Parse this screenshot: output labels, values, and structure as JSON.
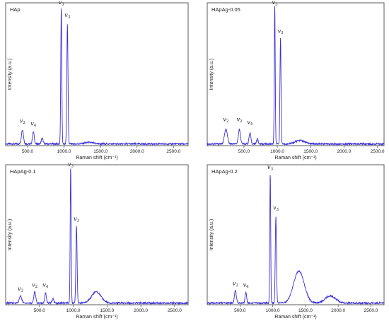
{
  "colors": {
    "series": "#3a2fd6",
    "frame": "#333333"
  },
  "chart_data": [
    {
      "type": "line",
      "panel_label": "HAp",
      "xlabel": "Raman shift (cm⁻¹)",
      "ylabel": "Intensity (a.u.)",
      "xlim": [
        200,
        2700
      ],
      "ylim": [
        0,
        1.0
      ],
      "xticks": [
        "500.0",
        "1000.0",
        "1500.0",
        "2000.0",
        "2500.0"
      ],
      "peaks": [
        {
          "x": 430,
          "y": 0.1,
          "w": 14
        },
        {
          "x": 580,
          "y": 0.085,
          "w": 12
        },
        {
          "x": 700,
          "y": 0.04,
          "w": 12
        },
        {
          "x": 962,
          "y": 0.96,
          "w": 7
        },
        {
          "x": 1046,
          "y": 0.84,
          "w": 8
        },
        {
          "x": 1340,
          "y": 0.01,
          "w": 60
        }
      ],
      "peak_labels": [
        {
          "x": 430,
          "y": 0.16,
          "base": "v",
          "sub": "2"
        },
        {
          "x": 580,
          "y": 0.14,
          "base": "v",
          "sub": "4"
        },
        {
          "x": 962,
          "y": 0.99,
          "base": "v",
          "sub": "3"
        },
        {
          "x": 1046,
          "y": 0.9,
          "base": "v",
          "sub": "3"
        }
      ]
    },
    {
      "type": "line",
      "panel_label": "HApAg-0.05",
      "xlabel": "Raman shift (cm⁻¹)",
      "ylabel": "Intensity (a.u.)",
      "xlim": [
        -50,
        2600
      ],
      "ylim": [
        0,
        1.0
      ],
      "xticks": [
        "500.0",
        "1000.0",
        "1500.0",
        "2000.0",
        "2500.0"
      ],
      "peaks": [
        {
          "x": 230,
          "y": 0.1,
          "w": 22
        },
        {
          "x": 432,
          "y": 0.1,
          "w": 16
        },
        {
          "x": 590,
          "y": 0.075,
          "w": 14
        },
        {
          "x": 700,
          "y": 0.035,
          "w": 12
        },
        {
          "x": 962,
          "y": 0.98,
          "w": 7
        },
        {
          "x": 1048,
          "y": 0.74,
          "w": 8
        },
        {
          "x": 1340,
          "y": 0.025,
          "w": 70
        }
      ],
      "peak_labels": [
        {
          "x": 230,
          "y": 0.17,
          "base": "v",
          "sub": "2"
        },
        {
          "x": 432,
          "y": 0.17,
          "base": "v",
          "sub": "2"
        },
        {
          "x": 590,
          "y": 0.15,
          "base": "v",
          "sub": "4"
        },
        {
          "x": 962,
          "y": 0.99,
          "base": "v",
          "sub": "3"
        },
        {
          "x": 1048,
          "y": 0.79,
          "base": "v",
          "sub": "3"
        }
      ]
    },
    {
      "type": "line",
      "panel_label": "HApAg-0.1",
      "xlabel": "Raman shift (cm⁻¹)",
      "ylabel": "Intensity (a.u.)",
      "xlim": [
        0,
        2700
      ],
      "ylim": [
        0,
        1.0
      ],
      "xticks": [
        "500.0",
        "1000.0",
        "1500.0",
        "2000.0",
        "2500.0"
      ],
      "peaks": [
        {
          "x": 220,
          "y": 0.05,
          "w": 18
        },
        {
          "x": 430,
          "y": 0.08,
          "w": 14
        },
        {
          "x": 590,
          "y": 0.075,
          "w": 12
        },
        {
          "x": 700,
          "y": 0.03,
          "w": 12
        },
        {
          "x": 962,
          "y": 0.98,
          "w": 7
        },
        {
          "x": 1048,
          "y": 0.55,
          "w": 9
        },
        {
          "x": 1340,
          "y": 0.08,
          "w": 70
        }
      ],
      "peak_labels": [
        {
          "x": 220,
          "y": 0.1,
          "base": "v",
          "sub": "2"
        },
        {
          "x": 430,
          "y": 0.13,
          "base": "v",
          "sub": "2"
        },
        {
          "x": 590,
          "y": 0.13,
          "base": "v",
          "sub": "4"
        },
        {
          "x": 962,
          "y": 0.99,
          "base": "v",
          "sub": "3"
        },
        {
          "x": 1048,
          "y": 0.6,
          "base": "v",
          "sub": "3"
        }
      ]
    },
    {
      "type": "line",
      "panel_label": "HApAg-0.2",
      "xlabel": "Raman shift (cm⁻¹)",
      "ylabel": "Intensity (a.u.)",
      "xlim": [
        0,
        2700
      ],
      "ylim": [
        0,
        1.0
      ],
      "xticks": [
        "500.0",
        "1000.0",
        "1500.0",
        "2000.0",
        "2500.0"
      ],
      "peaks": [
        {
          "x": 430,
          "y": 0.09,
          "w": 14
        },
        {
          "x": 590,
          "y": 0.075,
          "w": 12
        },
        {
          "x": 962,
          "y": 0.94,
          "w": 7
        },
        {
          "x": 1048,
          "y": 0.62,
          "w": 9
        },
        {
          "x": 1400,
          "y": 0.23,
          "w": 80
        },
        {
          "x": 1880,
          "y": 0.05,
          "w": 80
        }
      ],
      "peak_labels": [
        {
          "x": 430,
          "y": 0.14,
          "base": "v",
          "sub": "2"
        },
        {
          "x": 590,
          "y": 0.13,
          "base": "v",
          "sub": "4"
        },
        {
          "x": 962,
          "y": 0.97,
          "base": "v",
          "sub": "3"
        },
        {
          "x": 1048,
          "y": 0.68,
          "base": "v",
          "sub": "3"
        }
      ]
    }
  ]
}
